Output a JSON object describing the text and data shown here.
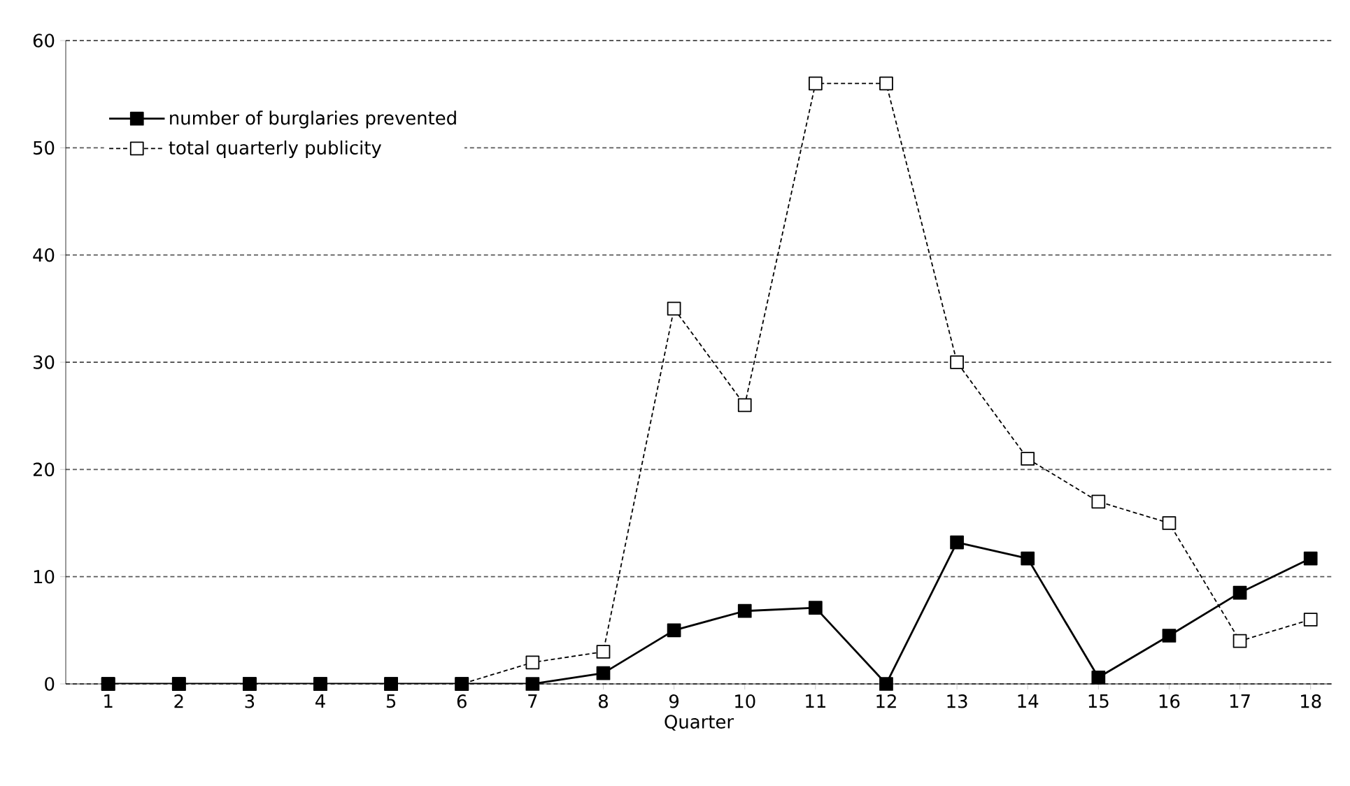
{
  "chart_data": {
    "type": "line",
    "xlabel": "Quarter",
    "categories": [
      "1",
      "2",
      "3",
      "4",
      "5",
      "6",
      "7",
      "8",
      "9",
      "10",
      "11",
      "12",
      "13",
      "14",
      "15",
      "16",
      "17",
      "18"
    ],
    "series": [
      {
        "name": "number of burglaries prevented",
        "color": "#000000",
        "line_style": "solid",
        "values": [
          0,
          0,
          0,
          0,
          0,
          0,
          0,
          1,
          5,
          6.8,
          7.1,
          0,
          13.2,
          11.7,
          0.6,
          4.5,
          8.5,
          11.7
        ]
      },
      {
        "name": "total quarterly publicity",
        "color": "#000000",
        "line_style": "dashed",
        "values": [
          0,
          0,
          0,
          0,
          0,
          0,
          2,
          3,
          35,
          26,
          56,
          56,
          30,
          21,
          17,
          15,
          4,
          6
        ]
      }
    ],
    "ylim": [
      0,
      60
    ],
    "yticks": [
      0,
      10,
      20,
      30,
      40,
      50,
      60
    ],
    "grid": "y",
    "legend": "top left",
    "marker": "square"
  }
}
